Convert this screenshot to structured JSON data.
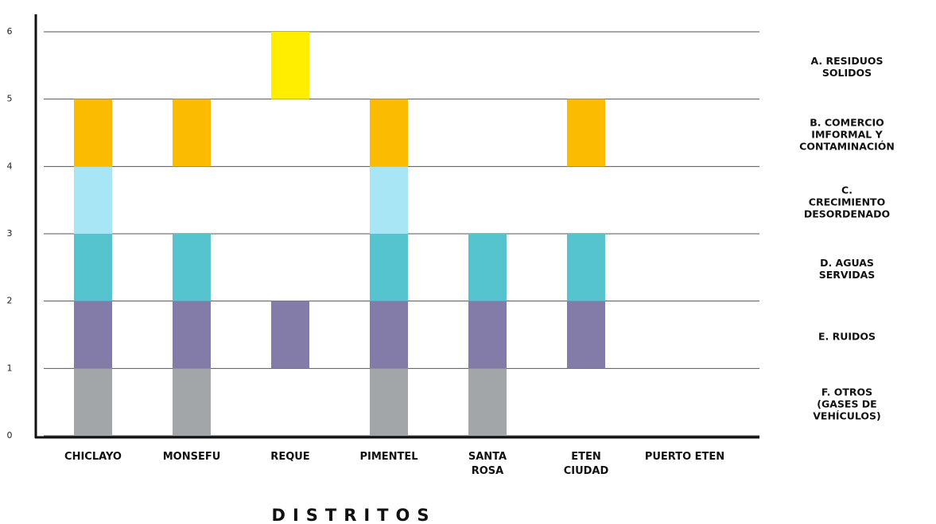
{
  "chart_data": {
    "type": "bar",
    "x_label": "DISTRITOS",
    "categories": [
      "CHICLAYO",
      "MONSEFU",
      "REQUE",
      "PIMENTEL",
      "SANTA\nROSA",
      "ETEN\nCIUDAD",
      "PUERTO ETEN"
    ],
    "series": [
      {
        "name": "F. OTROS\n(GASES DE VEHÍCULOS)",
        "color": "#a3a6a8",
        "values": [
          1,
          1,
          0,
          1,
          1,
          0,
          0
        ]
      },
      {
        "name": "E. RUIDOS",
        "color": "#837ca8",
        "values": [
          1,
          1,
          1,
          1,
          1,
          1,
          0
        ]
      },
      {
        "name": "D. AGUAS SERVIDAS",
        "color": "#55c4cf",
        "values": [
          1,
          1,
          0,
          1,
          1,
          1,
          0
        ]
      },
      {
        "name": "C. CRECIMIENTO\nDESORDENADO",
        "color": "#a8e6f5",
        "values": [
          1,
          0,
          0,
          1,
          0,
          0,
          0
        ]
      },
      {
        "name": "B. COMERCIO IMFORMAL Y\nCONTAMINACIÓN",
        "color": "#fbbb00",
        "values": [
          1,
          1,
          0,
          1,
          0,
          1,
          0
        ]
      },
      {
        "name": "A. RESIDUOS SOLIDOS",
        "color": "#ffee00",
        "values": [
          0,
          0,
          1,
          0,
          0,
          0,
          0
        ]
      }
    ],
    "ylim": [
      0,
      6
    ],
    "yticks": [
      0,
      1,
      2,
      3,
      4,
      5,
      6
    ],
    "grid": true
  }
}
